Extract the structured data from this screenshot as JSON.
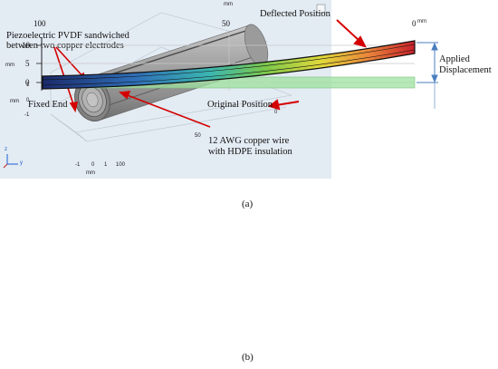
{
  "panel_a": {
    "annotation_top_line1": "Piezoelectric PVDF sandwiched",
    "annotation_top_line2": "between two copper electrodes",
    "annotation_bottom_line1": "12 AWG copper wire",
    "annotation_bottom_line2": "with HDPE insulation",
    "axis_y_ticks": [
      "1",
      "0",
      "-1"
    ],
    "axis_y_unit": "mm",
    "axis_right_tick": "0",
    "axis_depth_tick": "50",
    "axis_bottom_ticks": [
      "-1",
      "0",
      "1",
      "100"
    ],
    "axis_bottom_unit": "mm",
    "triad_z": "z",
    "triad_y": "y",
    "caption": "(a)"
  },
  "panel_b": {
    "top_unit_center": "mm",
    "top_unit_right": "mm",
    "top_ticks": [
      "100",
      "50",
      "0"
    ],
    "y_ticks": [
      "10",
      "5",
      "0"
    ],
    "y_unit": "mm",
    "label_deflected": "Deflected Position",
    "label_original": "Original Position",
    "label_fixed": "Fixed End",
    "label_applied_line1": "Applied",
    "label_applied_line2": "Displacement",
    "caption": "(b)"
  },
  "colors": {
    "annotation_arrow": "#d40000",
    "panel_a_background": "#e3ebf3",
    "original_position_fill": "#9fe09f",
    "dimension_arrow": "#4a7fc0"
  }
}
